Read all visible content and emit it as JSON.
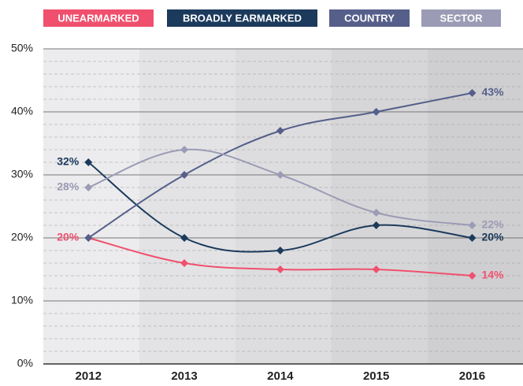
{
  "chart_data": {
    "type": "line",
    "categories": [
      "2012",
      "2013",
      "2014",
      "2015",
      "2016"
    ],
    "series": [
      {
        "name": "UNEARMARKED",
        "color": "#f0506e",
        "values": [
          20,
          16,
          15,
          15,
          14
        ],
        "value_labels": [
          "20%",
          null,
          null,
          null,
          "14%"
        ]
      },
      {
        "name": "BROADLY EARMARKED",
        "color": "#1b3a5c",
        "values": [
          32,
          20,
          18,
          22,
          20
        ],
        "value_labels": [
          "32%",
          null,
          null,
          null,
          "20%"
        ]
      },
      {
        "name": "COUNTRY",
        "color": "#565f8a",
        "values": [
          20,
          30,
          37,
          40,
          43
        ],
        "value_labels": [
          null,
          null,
          null,
          null,
          "43%"
        ]
      },
      {
        "name": "SECTOR",
        "color": "#9b9bb5",
        "values": [
          28,
          34,
          30,
          24,
          22
        ],
        "value_labels": [
          "28%",
          null,
          null,
          null,
          "22%"
        ]
      }
    ],
    "ylim": [
      0,
      50
    ],
    "yticks": [
      {
        "value": 0,
        "label": "0%"
      },
      {
        "value": 10,
        "label": "10%"
      },
      {
        "value": 20,
        "label": "20%"
      },
      {
        "value": 30,
        "label": "30%"
      },
      {
        "value": 40,
        "label": "40%"
      },
      {
        "value": 50,
        "label": "50%"
      }
    ],
    "minor_yticks": [
      2,
      4,
      6,
      8,
      12,
      14,
      16,
      18,
      22,
      24,
      26,
      28,
      32,
      34,
      36,
      38,
      42,
      44,
      46,
      48
    ],
    "grid": true,
    "legend": "top"
  }
}
